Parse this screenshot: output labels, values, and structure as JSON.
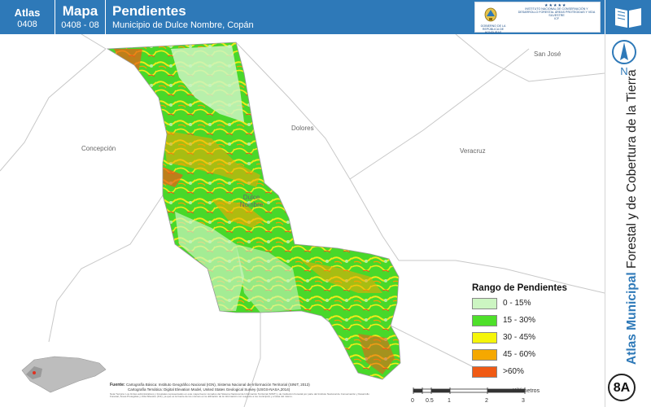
{
  "header": {
    "atlas_label": "Atlas",
    "atlas_code": "0408",
    "mapa_label": "Mapa",
    "mapa_code": "0408 - 08",
    "title": "Pendientes",
    "subtitle": "Municipio de Dulce Nombre, Copán"
  },
  "logos": {
    "gov_text": "GOBIERNO DE LA REPÚBLICA DE HONDURAS",
    "icf_text": "INSTITUTO NACIONAL DE CONSERVACIÓN Y DESARROLLO FORESTAL ÁREAS PROTEGIDAS Y VIDA SILVESTRE",
    "icf_acronym": "ICF"
  },
  "sidebar": {
    "north_letter": "N",
    "title_bold": "Atlas Municipal",
    "title_rest": " Forestal y de Cobertura de la Tierra",
    "badge": "8A"
  },
  "places": {
    "san_jose": "San José",
    "dolores": "Dolores",
    "concepcion": "Concepción",
    "veracruz": "Veracruz",
    "dulce_nombre": "Dulce Nombre"
  },
  "legend": {
    "title": "Rango de Pendientes",
    "items": [
      {
        "label": "0 - 15%",
        "color": "#ccf5c2"
      },
      {
        "label": "15 - 30%",
        "color": "#4ee02a"
      },
      {
        "label": "30 - 45%",
        "color": "#f5f50a"
      },
      {
        "label": "45 - 60%",
        "color": "#f5a800"
      },
      {
        "label": ">60%",
        "color": "#f05a14"
      }
    ]
  },
  "sources": {
    "heading": "Fuente:",
    "line1": "Cartografía Básica: Instituto Geográfico Nacional (IGN), Sistema Nacional de Información Territorial (SINIT, 2013)",
    "line2": "Cartografía Temática: Digital Elevation Model, United States Geological Survey (USGS-NASA,2014)",
    "note": "Nota Técnica: Los límites administrativos y forestales representados en este mapa fueron tomados del Sistema Nacional de Información Territorial (SINIT) y de Institución Forestal por parte del Instituto Nacional de Conservación y Desarrollo Forestal, Áreas Protegidas y Vida Silvestre (ICF), ya que es la fuente de los mismos en la utilización de la información con respecto a los municipios y el área del mismo."
  },
  "scale": {
    "unit": "Kilómetros",
    "ticks": [
      "0",
      "0.5",
      "1",
      "2",
      "3"
    ]
  }
}
